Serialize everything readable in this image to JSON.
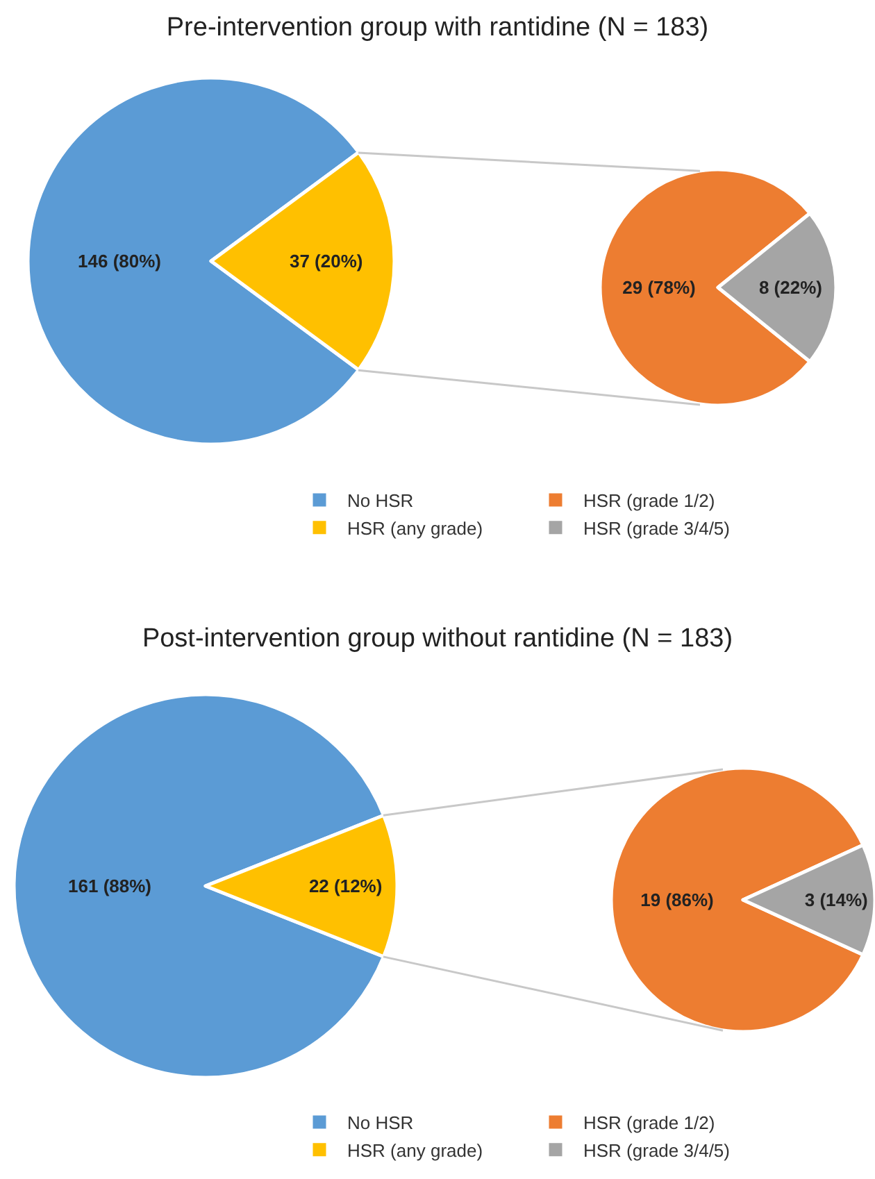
{
  "chart_data": [
    {
      "type": "pie",
      "title": "Pre-intervention group with rantidine (N = 183)",
      "categories": [
        "No HSR",
        "HSR (any grade)"
      ],
      "values": [
        146,
        37
      ],
      "colors": [
        "#5b9bd5",
        "#ffc000"
      ],
      "value_labels": [
        "146 (80%)",
        "37 (20%)"
      ],
      "legend": "bottom"
    },
    {
      "type": "pie",
      "categories": [
        "HSR (grade 1/2)",
        "HSR (grade 3/4/5)"
      ],
      "values": [
        29,
        8
      ],
      "colors": [
        "#ed7d31",
        "#a5a5a5"
      ],
      "value_labels": [
        "29 (78%)",
        "8 (22%)"
      ],
      "legend": "bottom"
    },
    {
      "type": "pie",
      "title": "Post-intervention group without rantidine (N = 183)",
      "categories": [
        "No HSR",
        "HSR (any grade)"
      ],
      "values": [
        161,
        22
      ],
      "colors": [
        "#5b9bd5",
        "#ffc000"
      ],
      "value_labels": [
        "161 (88%)",
        "22 (12%)"
      ],
      "legend": "bottom"
    },
    {
      "type": "pie",
      "categories": [
        "HSR (grade 1/2)",
        "HSR (grade 3/4/5)"
      ],
      "values": [
        19,
        3
      ],
      "colors": [
        "#ed7d31",
        "#a5a5a5"
      ],
      "value_labels": [
        "19 (86%)",
        "3 (14%)"
      ],
      "legend": "bottom"
    }
  ]
}
